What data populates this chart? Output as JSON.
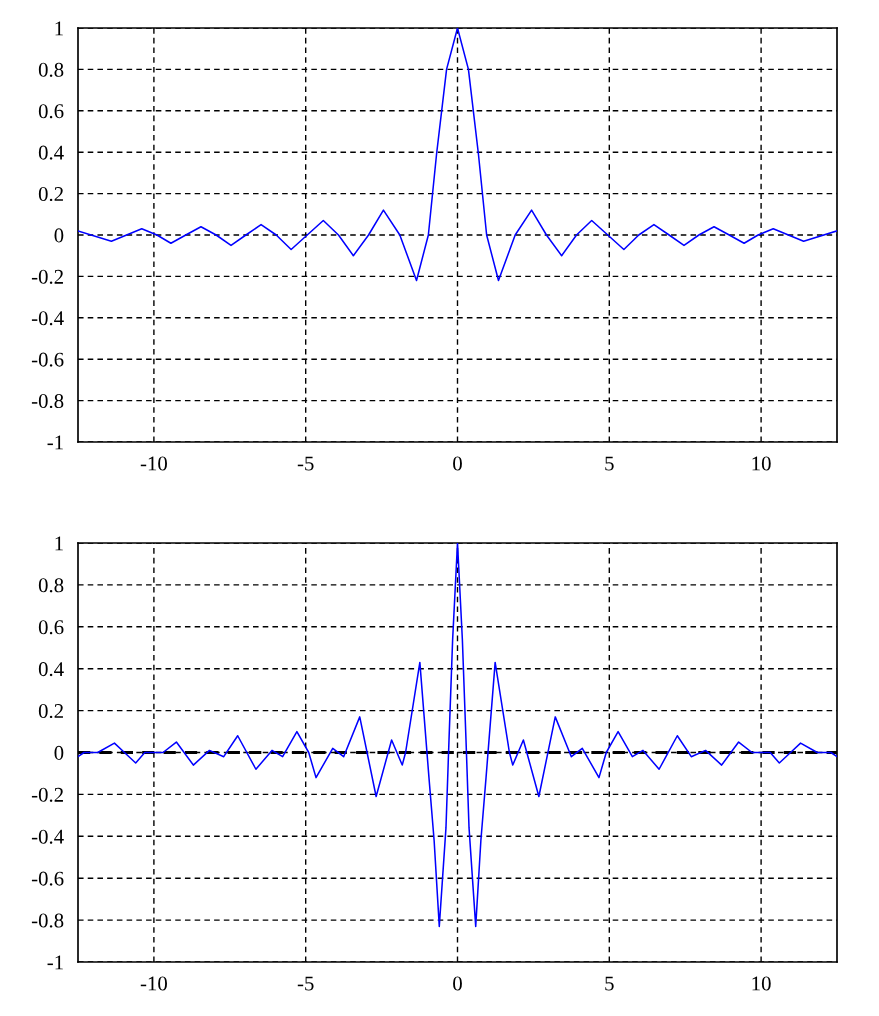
{
  "chart_data": [
    {
      "type": "line",
      "xlim": [
        -12.5,
        12.5
      ],
      "ylim": [
        -1,
        1
      ],
      "xticks": [
        -10,
        -5,
        0,
        5,
        10
      ],
      "yticks": [
        -1,
        {
          "value": -0.8,
          "label": "-0.8"
        },
        {
          "value": -0.6,
          "label": "-0.6"
        },
        {
          "value": -0.4,
          "label": "-0.4"
        },
        {
          "value": -0.2,
          "label": "-0.2"
        },
        0,
        {
          "value": 0.2,
          "label": "0.2"
        },
        {
          "value": 0.4,
          "label": "0.4"
        },
        {
          "value": 0.6,
          "label": "0.6"
        },
        {
          "value": 0.8,
          "label": "0.8"
        },
        1
      ],
      "grid": true,
      "marker": "none",
      "line_style": "solid",
      "series": [
        {
          "color": "#0000ff",
          "x": [
            -12.5,
            -11.4,
            -10.9,
            -10.4,
            -9.9,
            -9.44,
            -8.95,
            -8.45,
            -7.95,
            -7.46,
            -6.97,
            -6.47,
            -5.97,
            -5.48,
            -4.95,
            -4.42,
            -3.92,
            -3.43,
            -2.93,
            -2.44,
            -1.9,
            -1.35,
            -0.96,
            -0.69,
            -0.36,
            0,
            0.36,
            0.69,
            0.96,
            1.35,
            1.9,
            2.44,
            2.93,
            3.43,
            3.92,
            4.42,
            4.95,
            5.48,
            5.97,
            6.47,
            6.97,
            7.46,
            7.95,
            8.45,
            8.95,
            9.44,
            9.9,
            10.4,
            10.9,
            11.4,
            12.5
          ],
          "values": [
            0.02,
            -0.03,
            0,
            0.03,
            0,
            -0.04,
            0,
            0.04,
            0,
            -0.05,
            0,
            0.05,
            0,
            -0.07,
            0,
            0.07,
            0,
            -0.1,
            0,
            0.12,
            0,
            -0.22,
            0,
            0.39,
            0.8,
            1,
            0.8,
            0.39,
            0,
            -0.22,
            0,
            0.12,
            0,
            -0.1,
            0,
            0.07,
            0,
            -0.07,
            0,
            0.05,
            0,
            -0.05,
            0,
            0.04,
            0,
            -0.04,
            0,
            0.03,
            0,
            -0.03,
            0.02
          ]
        }
      ]
    },
    {
      "type": "line",
      "xlim": [
        -12.5,
        12.5
      ],
      "ylim": [
        -1,
        1
      ],
      "xticks": [
        -10,
        -5,
        0,
        5,
        10
      ],
      "yticks": [
        -1,
        {
          "value": -0.8,
          "label": "-0.8"
        },
        {
          "value": -0.6,
          "label": "-0.6"
        },
        {
          "value": -0.4,
          "label": "-0.4"
        },
        {
          "value": -0.2,
          "label": "-0.2"
        },
        0,
        {
          "value": 0.2,
          "label": "0.2"
        },
        {
          "value": 0.4,
          "label": "0.4"
        },
        {
          "value": 0.6,
          "label": "0.6"
        },
        {
          "value": 0.8,
          "label": "0.8"
        },
        1
      ],
      "grid": true,
      "marker": "none",
      "line_style": "solid",
      "ref_lines": [
        {
          "axis": "y",
          "value": 0,
          "color": "#000000",
          "line_style": "dashed"
        }
      ],
      "series": [
        {
          "color": "#0000ff",
          "x": [
            -12.5,
            -12.3,
            -11.85,
            -11.3,
            -10.97,
            -10.6,
            -10.3,
            -9.7,
            -9.26,
            -8.7,
            -8.17,
            -7.7,
            -7.24,
            -6.64,
            -6.11,
            -5.76,
            -5.29,
            -4.9,
            -4.66,
            -4.11,
            -3.75,
            -3.22,
            -2.68,
            -2.17,
            -1.82,
            -1.71,
            -1.24,
            -0.94,
            -0.77,
            -0.6,
            -0.38,
            -0.28,
            -0.16,
            0,
            0.16,
            0.28,
            0.38,
            0.6,
            0.77,
            0.94,
            1.24,
            1.71,
            1.82,
            2.17,
            2.68,
            3.22,
            3.75,
            4.11,
            4.66,
            4.9,
            5.29,
            5.76,
            6.11,
            6.64,
            7.24,
            7.7,
            8.17,
            8.7,
            9.26,
            9.7,
            10.3,
            10.6,
            10.97,
            11.3,
            11.85,
            12.3,
            12.5
          ],
          "values": [
            -0.02,
            0,
            0,
            0.045,
            0,
            -0.05,
            0,
            0,
            0.05,
            -0.06,
            0.01,
            -0.02,
            0.08,
            -0.08,
            0.01,
            -0.02,
            0.1,
            0,
            -0.12,
            0.02,
            -0.02,
            0.17,
            -0.21,
            0.06,
            -0.06,
            0,
            0.43,
            -0.12,
            -0.42,
            -0.83,
            -0.36,
            0.06,
            0.54,
            1,
            0.54,
            0.06,
            -0.36,
            -0.83,
            -0.42,
            -0.12,
            0.43,
            0,
            -0.06,
            0.06,
            -0.21,
            0.17,
            -0.02,
            0.02,
            -0.12,
            0,
            0.1,
            -0.02,
            0.01,
            -0.08,
            0.08,
            -0.02,
            0.01,
            -0.06,
            0.05,
            0,
            0,
            -0.05,
            0,
            0.045,
            0,
            0,
            -0.02
          ]
        }
      ]
    }
  ]
}
